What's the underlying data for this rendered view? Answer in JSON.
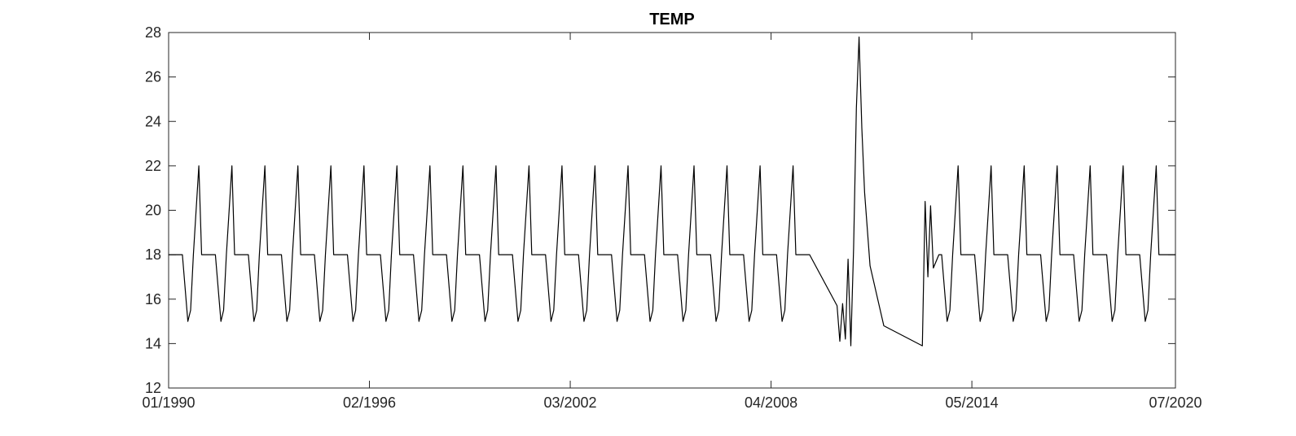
{
  "chart_data": {
    "type": "line",
    "title": "TEMP",
    "xlabel": "",
    "ylabel": "",
    "xlim": [
      "1990-01",
      "2020-07"
    ],
    "ylim": [
      12,
      28
    ],
    "yticks": [
      12,
      14,
      16,
      18,
      20,
      22,
      24,
      26,
      28
    ],
    "xticks": [
      "01/1990",
      "02/1996",
      "03/2002",
      "04/2008",
      "05/2014",
      "07/2020"
    ],
    "grid": false,
    "legend": "none",
    "colors": {
      "line": "#000000",
      "axes": "#262626",
      "background": "#ffffff"
    },
    "series": [
      {
        "x": [
          "1990-01",
          "1990-06",
          "1990-08",
          "1990-09",
          "1990-10",
          "1990-12",
          "1991-01",
          "1991-03",
          "1991-06",
          "1991-08",
          "1991-09",
          "1991-10",
          "1991-12",
          "1992-01",
          "1992-03",
          "1992-06",
          "1992-08",
          "1992-09",
          "1992-10",
          "1992-12",
          "1993-01",
          "1993-03",
          "1993-06",
          "1993-08",
          "1993-09",
          "1993-10",
          "1993-12",
          "1994-01",
          "1994-03",
          "1994-06",
          "1994-08",
          "1994-09",
          "1994-10",
          "1994-12",
          "1995-01",
          "1995-03",
          "1995-06",
          "1995-08",
          "1995-09",
          "1995-10",
          "1995-12",
          "1996-01",
          "1996-03",
          "1996-06",
          "1996-08",
          "1996-09",
          "1996-10",
          "1996-12",
          "1997-01",
          "1997-03",
          "1997-06",
          "1997-08",
          "1997-09",
          "1997-10",
          "1997-12",
          "1998-01",
          "1998-03",
          "1998-06",
          "1998-08",
          "1998-09",
          "1998-10",
          "1998-12",
          "1999-01",
          "1999-03",
          "1999-06",
          "1999-08",
          "1999-09",
          "1999-10",
          "1999-12",
          "2000-01",
          "2000-03",
          "2000-06",
          "2000-08",
          "2000-09",
          "2000-10",
          "2000-12",
          "2001-01",
          "2001-03",
          "2001-06",
          "2001-08",
          "2001-09",
          "2001-10",
          "2001-12",
          "2002-01",
          "2002-03",
          "2002-06",
          "2002-08",
          "2002-09",
          "2002-10",
          "2002-12",
          "2003-01",
          "2003-03",
          "2003-06",
          "2003-08",
          "2003-09",
          "2003-10",
          "2003-12",
          "2004-01",
          "2004-03",
          "2004-06",
          "2004-08",
          "2004-09",
          "2004-10",
          "2004-12",
          "2005-01",
          "2005-03",
          "2005-06",
          "2005-08",
          "2005-09",
          "2005-10",
          "2005-12",
          "2006-01",
          "2006-03",
          "2006-06",
          "2006-08",
          "2006-09",
          "2006-10",
          "2006-12",
          "2007-01",
          "2007-03",
          "2007-06",
          "2007-08",
          "2007-09",
          "2007-10",
          "2007-12",
          "2008-01",
          "2008-03",
          "2008-06",
          "2008-08",
          "2008-09",
          "2008-10",
          "2008-12",
          "2009-01",
          "2009-03",
          "2009-06",
          "2010-04",
          "2010-05",
          "2010-06",
          "2010-07",
          "2010-08",
          "2010-09",
          "2010-10",
          "2010-11",
          "2010-12",
          "2011-01",
          "2011-02",
          "2011-04",
          "2011-09",
          "2012-11",
          "2012-12",
          "2013-01",
          "2013-02",
          "2013-03",
          "2013-05",
          "2013-06",
          "2013-08",
          "2013-09",
          "2013-10",
          "2013-12",
          "2014-01",
          "2014-03",
          "2014-06",
          "2014-08",
          "2014-09",
          "2014-10",
          "2014-12",
          "2015-01",
          "2015-03",
          "2015-06",
          "2015-08",
          "2015-09",
          "2015-10",
          "2015-12",
          "2016-01",
          "2016-03",
          "2016-06",
          "2016-08",
          "2016-09",
          "2016-10",
          "2016-12",
          "2017-01",
          "2017-03",
          "2017-06",
          "2017-08",
          "2017-09",
          "2017-10",
          "2017-12",
          "2018-01",
          "2018-03",
          "2018-06",
          "2018-08",
          "2018-09",
          "2018-10",
          "2018-12",
          "2019-01",
          "2019-03",
          "2019-06",
          "2019-08",
          "2019-09",
          "2019-10",
          "2019-12",
          "2020-01",
          "2020-03",
          "2020-06",
          "2020-07"
        ],
        "values": [
          18,
          18,
          15,
          15.5,
          18,
          22,
          18,
          18,
          18,
          15,
          15.5,
          18,
          22,
          18,
          18,
          18,
          15,
          15.5,
          18,
          22,
          18,
          18,
          18,
          15,
          15.5,
          18,
          22,
          18,
          18,
          18,
          15,
          15.5,
          18,
          22,
          18,
          18,
          18,
          15,
          15.5,
          18,
          22,
          18,
          18,
          18,
          15,
          15.5,
          18,
          22,
          18,
          18,
          18,
          15,
          15.5,
          18,
          22,
          18,
          18,
          18,
          15,
          15.5,
          18,
          22,
          18,
          18,
          18,
          15,
          15.5,
          18,
          22,
          18,
          18,
          18,
          15,
          15.5,
          18,
          22,
          18,
          18,
          18,
          15,
          15.5,
          18,
          22,
          18,
          18,
          18,
          15,
          15.5,
          18,
          22,
          18,
          18,
          18,
          15,
          15.5,
          18,
          22,
          18,
          18,
          18,
          15,
          15.5,
          18,
          22,
          18,
          18,
          18,
          15,
          15.5,
          18,
          22,
          18,
          18,
          18,
          15,
          15.5,
          18,
          22,
          18,
          18,
          18,
          15,
          15.5,
          18,
          22,
          18,
          18,
          18,
          15,
          15.5,
          18,
          22,
          18,
          18,
          18,
          15.7,
          14.1,
          15.8,
          14.2,
          17.8,
          13.9,
          18.3,
          24.6,
          27.8,
          23.7,
          20.8,
          17.5,
          14.8,
          13.9,
          20.4,
          17,
          20.2,
          17.4,
          18,
          18,
          15,
          15.5,
          18,
          22,
          18,
          18,
          18,
          15,
          15.5,
          18,
          22,
          18,
          18,
          18,
          15,
          15.5,
          18,
          22,
          18,
          18,
          18,
          15,
          15.5,
          18,
          22,
          18,
          18,
          18,
          15,
          15.5,
          18,
          22,
          18,
          18,
          18,
          15,
          15.5,
          18,
          22,
          18,
          18,
          18,
          15,
          15.5,
          18,
          22,
          18,
          18,
          18,
          18
        ]
      }
    ]
  }
}
